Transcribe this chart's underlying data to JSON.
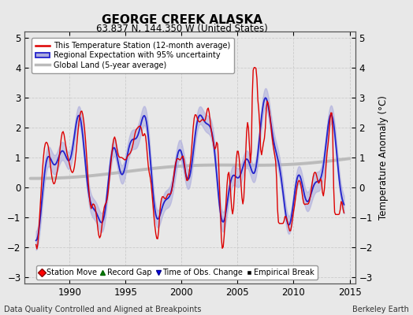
{
  "title": "GEORGE CREEK ALASKA",
  "subtitle": "63.837 N, 144.350 W (United States)",
  "xlabel_bottom": "Data Quality Controlled and Aligned at Breakpoints",
  "xlabel_right": "Berkeley Earth",
  "ylabel": "Temperature Anomaly (°C)",
  "xlim": [
    1986.0,
    2015.5
  ],
  "ylim": [
    -3.2,
    5.2
  ],
  "yticks": [
    -3,
    -2,
    -1,
    0,
    1,
    2,
    3,
    4,
    5
  ],
  "xticks": [
    1990,
    1995,
    2000,
    2005,
    2010,
    2015
  ],
  "bg_color": "#e8e8e8",
  "plot_bg": "#e8e8e8",
  "legend_items": [
    {
      "label": "This Temperature Station (12-month average)",
      "color": "#dd0000",
      "lw": 1.5
    },
    {
      "label": "Regional Expectation with 95% uncertainty",
      "color": "#3333cc",
      "lw": 1.5
    },
    {
      "label": "Global Land (5-year average)",
      "color": "#bbbbbb",
      "lw": 2.5
    }
  ],
  "marker_items": [
    {
      "label": "Station Move",
      "color": "red",
      "marker": "D"
    },
    {
      "label": "Record Gap",
      "color": "green",
      "marker": "^"
    },
    {
      "label": "Time of Obs. Change",
      "color": "blue",
      "marker": "v"
    },
    {
      "label": "Empirical Break",
      "color": "black",
      "marker": "s"
    }
  ]
}
